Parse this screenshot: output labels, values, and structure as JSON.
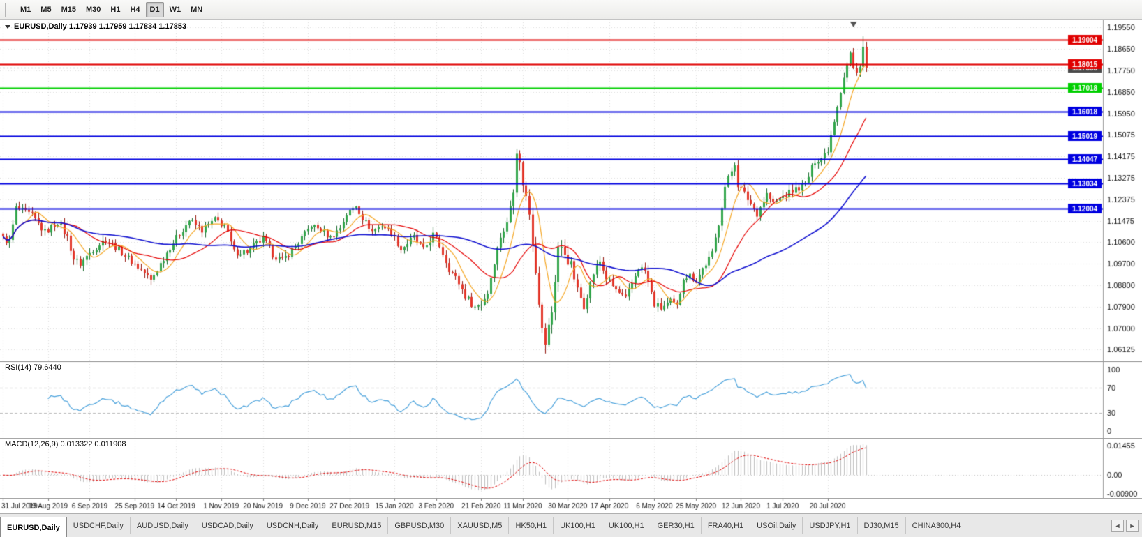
{
  "toolbar": {
    "timeframes": [
      "M1",
      "M5",
      "M15",
      "M30",
      "H1",
      "H4",
      "D1",
      "W1",
      "MN"
    ],
    "active_timeframe": "D1"
  },
  "chart": {
    "title": "EURUSD,Daily 1.17939 1.17959 1.17834 1.17853",
    "symbol": "EURUSD,Daily",
    "ohlc": {
      "open": "1.17939",
      "high": "1.17959",
      "low": "1.17834",
      "close": "1.17853"
    }
  },
  "indicator_panels": {
    "rsi": {
      "label": "RSI(14) 79.6440",
      "ticks": [
        "100",
        "70",
        "30",
        "0"
      ],
      "level_lines": [
        70,
        30
      ],
      "line_color": "#4aa2dc"
    },
    "macd": {
      "label": "MACD(12,26,9) 0.013322 0.011908",
      "ticks": [
        {
          "text": "0.01455",
          "value": 0.01455
        },
        {
          "text": "0.00",
          "value": 0
        },
        {
          "text": "-0.00900",
          "value": -0.009
        }
      ],
      "y_range": [
        -0.0095,
        0.0165
      ],
      "histogram_color": "#c0c0c0",
      "signal_color": "#e00000"
    }
  },
  "chart_data": {
    "type": "candlestick",
    "title": "EURUSD,Daily",
    "candle_count": 270,
    "y_range": [
      1.057,
      1.198
    ],
    "y_axis_ticks": [
      "1.19550",
      "1.18650",
      "1.17750",
      "1.16850",
      "1.15950",
      "1.15075",
      "1.14175",
      "1.13275",
      "1.12375",
      "1.11475",
      "1.10600",
      "1.09700",
      "1.08800",
      "1.07900",
      "1.07000",
      "1.06125"
    ],
    "x_labels": [
      {
        "text": "31 Jul 2019",
        "index": 0
      },
      {
        "text": "19 Aug 2019",
        "index": 14
      },
      {
        "text": "6 Sep 2019",
        "index": 27
      },
      {
        "text": "25 Sep 2019",
        "index": 41
      },
      {
        "text": "14 Oct 2019",
        "index": 54
      },
      {
        "text": "1 Nov 2019",
        "index": 68
      },
      {
        "text": "20 Nov 2019",
        "index": 81
      },
      {
        "text": "9 Dec 2019",
        "index": 95
      },
      {
        "text": "27 Dec 2019",
        "index": 108
      },
      {
        "text": "15 Jan 2020",
        "index": 122
      },
      {
        "text": "3 Feb 2020",
        "index": 135
      },
      {
        "text": "21 Feb 2020",
        "index": 149
      },
      {
        "text": "11 Mar 2020",
        "index": 162
      },
      {
        "text": "30 Mar 2020",
        "index": 176
      },
      {
        "text": "17 Apr 2020",
        "index": 189
      },
      {
        "text": "6 May 2020",
        "index": 203
      },
      {
        "text": "25 May 2020",
        "index": 216
      },
      {
        "text": "12 Jun 2020",
        "index": 230
      },
      {
        "text": "1 Jul 2020",
        "index": 243
      },
      {
        "text": "20 Jul 2020",
        "index": 257
      }
    ],
    "price_path": [
      [
        0,
        1.1074
      ],
      [
        2,
        1.106
      ],
      [
        4,
        1.12
      ],
      [
        9,
        1.117
      ],
      [
        13,
        1.11
      ],
      [
        17,
        1.1145
      ],
      [
        20,
        1.108
      ],
      [
        22,
        1.099
      ],
      [
        24,
        1.097
      ],
      [
        28,
        1.103
      ],
      [
        32,
        1.1073
      ],
      [
        37,
        1.1017
      ],
      [
        40,
        1.098
      ],
      [
        44,
        1.0932
      ],
      [
        46,
        1.09
      ],
      [
        52,
        1.104
      ],
      [
        58,
        1.115
      ],
      [
        62,
        1.111
      ],
      [
        66,
        1.1152
      ],
      [
        69,
        1.113
      ],
      [
        72,
        1.1018
      ],
      [
        76,
        1.1021
      ],
      [
        81,
        1.1074
      ],
      [
        84,
        1.101
      ],
      [
        87,
        1.0981
      ],
      [
        92,
        1.1059
      ],
      [
        96,
        1.113
      ],
      [
        99,
        1.111
      ],
      [
        102,
        1.1078
      ],
      [
        105,
        1.112
      ],
      [
        107,
        1.1175
      ],
      [
        110,
        1.1213
      ],
      [
        112,
        1.116
      ],
      [
        115,
        1.1105
      ],
      [
        118,
        1.113
      ],
      [
        121,
        1.11
      ],
      [
        124,
        1.103
      ],
      [
        128,
        1.108
      ],
      [
        131,
        1.1025
      ],
      [
        134,
        1.109
      ],
      [
        136,
        1.1045
      ],
      [
        139,
        1.095
      ],
      [
        142,
        1.089
      ],
      [
        144,
        1.0835
      ],
      [
        147,
        1.079
      ],
      [
        149,
        1.0805
      ],
      [
        151,
        1.085
      ],
      [
        153,
        1.098
      ],
      [
        155,
        1.1085
      ],
      [
        157,
        1.1135
      ],
      [
        159,
        1.129
      ],
      [
        160,
        1.1448
      ],
      [
        162,
        1.131
      ],
      [
        164,
        1.118
      ],
      [
        166,
        1.095
      ],
      [
        168,
        1.069
      ],
      [
        169,
        1.064
      ],
      [
        171,
        1.077
      ],
      [
        173,
        1.104
      ],
      [
        175,
        1.1015
      ],
      [
        177,
        1.096
      ],
      [
        179,
        1.086
      ],
      [
        181,
        1.0795
      ],
      [
        184,
        1.093
      ],
      [
        186,
        1.098
      ],
      [
        188,
        1.091
      ],
      [
        191,
        1.086
      ],
      [
        194,
        1.082
      ],
      [
        198,
        1.0955
      ],
      [
        200,
        1.094
      ],
      [
        203,
        1.08
      ],
      [
        205,
        1.0785
      ],
      [
        208,
        1.081
      ],
      [
        210,
        1.079
      ],
      [
        212,
        1.0915
      ],
      [
        214,
        1.092
      ],
      [
        216,
        1.09
      ],
      [
        218,
        1.095
      ],
      [
        221,
        1.101
      ],
      [
        223,
        1.114
      ],
      [
        225,
        1.129
      ],
      [
        228,
        1.139
      ],
      [
        229,
        1.13
      ],
      [
        232,
        1.124
      ],
      [
        235,
        1.118
      ],
      [
        238,
        1.126
      ],
      [
        240,
        1.122
      ],
      [
        243,
        1.125
      ],
      [
        247,
        1.128
      ],
      [
        250,
        1.13
      ],
      [
        253,
        1.14
      ],
      [
        255,
        1.141
      ],
      [
        257,
        1.1446
      ],
      [
        259,
        1.157
      ],
      [
        262,
        1.175
      ],
      [
        264,
        1.1845
      ],
      [
        265,
        1.1778
      ],
      [
        266,
        1.1762
      ],
      [
        267,
        1.1803
      ],
      [
        268,
        1.1873
      ],
      [
        269,
        1.17853
      ]
    ],
    "last_close": 1.17853,
    "spike": {
      "index": 268,
      "high": 1.19159
    },
    "horizontal_lines": [
      {
        "value": 1.19004,
        "label": "1.19004",
        "color": "#e00000"
      },
      {
        "value": 1.18015,
        "label": "1.18015",
        "color": "#e00000"
      },
      {
        "value": 1.17018,
        "label": "1.17018",
        "color": "#00cf00"
      },
      {
        "value": 1.16018,
        "label": "1.16018",
        "color": "#0000e0"
      },
      {
        "value": 1.15019,
        "label": "1.15019",
        "color": "#0000e0"
      },
      {
        "value": 1.14047,
        "label": "1.14047",
        "color": "#0000e0"
      },
      {
        "value": 1.13034,
        "label": "1.13034",
        "color": "#0000e0"
      },
      {
        "value": 1.12004,
        "label": "1.12004",
        "color": "#0000e0"
      }
    ],
    "current_price": {
      "value": 1.17853,
      "label": "1.17853",
      "color": "#4a4a4a"
    },
    "moving_averages": [
      {
        "period": 8,
        "color": "#f5a623"
      },
      {
        "period": 21,
        "color": "#e60000"
      },
      {
        "period": 55,
        "color": "#1010d0"
      }
    ],
    "candle_up_color": "#33a64c",
    "candle_up_border": "#17692c",
    "candle_down_color": "#e3362a",
    "candle_down_border": "#951b12",
    "rsi": {
      "period": 14,
      "last_value": "79.6440"
    },
    "macd": {
      "fast": 12,
      "slow": 26,
      "signal": 9,
      "last_values": [
        "0.013322",
        "0.011908"
      ]
    }
  },
  "tabs": {
    "items": [
      "EURUSD,Daily",
      "USDCHF,Daily",
      "AUDUSD,Daily",
      "USDCAD,Daily",
      "USDCNH,Daily",
      "EURUSD,M15",
      "GBPUSD,M30",
      "XAUUSD,M5",
      "HK50,H1",
      "UK100,H1",
      "UK100,H1",
      "GER30,H1",
      "FRA40,H1",
      "USOil,Daily",
      "USDJPY,H1",
      "DJ30,M15",
      "CHINA300,H4"
    ],
    "active_index": 0,
    "scroll_left": "◄",
    "scroll_right": "►"
  }
}
